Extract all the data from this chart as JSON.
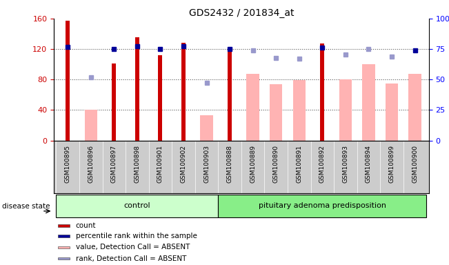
{
  "title": "GDS2432 / 201834_at",
  "samples": [
    "GSM100895",
    "GSM100896",
    "GSM100897",
    "GSM100898",
    "GSM100901",
    "GSM100902",
    "GSM100903",
    "GSM100888",
    "GSM100889",
    "GSM100890",
    "GSM100891",
    "GSM100892",
    "GSM100893",
    "GSM100894",
    "GSM100899",
    "GSM100900"
  ],
  "groups": [
    {
      "label": "control",
      "start": 0,
      "end": 7
    },
    {
      "label": "pituitary adenoma predisposition",
      "start": 7,
      "end": 16
    }
  ],
  "count_values": [
    157,
    null,
    101,
    135,
    112,
    128,
    null,
    118,
    null,
    null,
    null,
    127,
    null,
    null,
    null,
    null
  ],
  "absent_value_values": [
    null,
    40,
    null,
    null,
    null,
    null,
    33,
    null,
    87,
    74,
    79,
    null,
    80,
    100,
    75,
    87
  ],
  "percentile_rank_values": [
    77,
    null,
    75,
    77.5,
    75,
    77.5,
    null,
    75,
    null,
    null,
    null,
    76,
    null,
    null,
    null,
    74
  ],
  "absent_rank_values": [
    null,
    52,
    null,
    null,
    null,
    null,
    47.5,
    null,
    74,
    67.5,
    67,
    null,
    70.5,
    75,
    69,
    null
  ],
  "ylim": [
    0,
    160
  ],
  "yticks": [
    0,
    40,
    80,
    120,
    160
  ],
  "y2lim": [
    0,
    100
  ],
  "y2ticks": [
    0,
    25,
    50,
    75,
    100
  ],
  "count_color": "#cc0000",
  "absent_value_color": "#ffb3b3",
  "percentile_rank_color": "#000099",
  "absent_rank_color": "#9999cc",
  "group_control_color": "#ccffcc",
  "group_pituitary_color": "#88ee88",
  "sample_bg_color": "#cccccc",
  "legend_items": [
    {
      "label": "count",
      "color": "#cc0000"
    },
    {
      "label": "percentile rank within the sample",
      "color": "#000099"
    },
    {
      "label": "value, Detection Call = ABSENT",
      "color": "#ffb3b3"
    },
    {
      "label": "rank, Detection Call = ABSENT",
      "color": "#9999cc"
    }
  ]
}
